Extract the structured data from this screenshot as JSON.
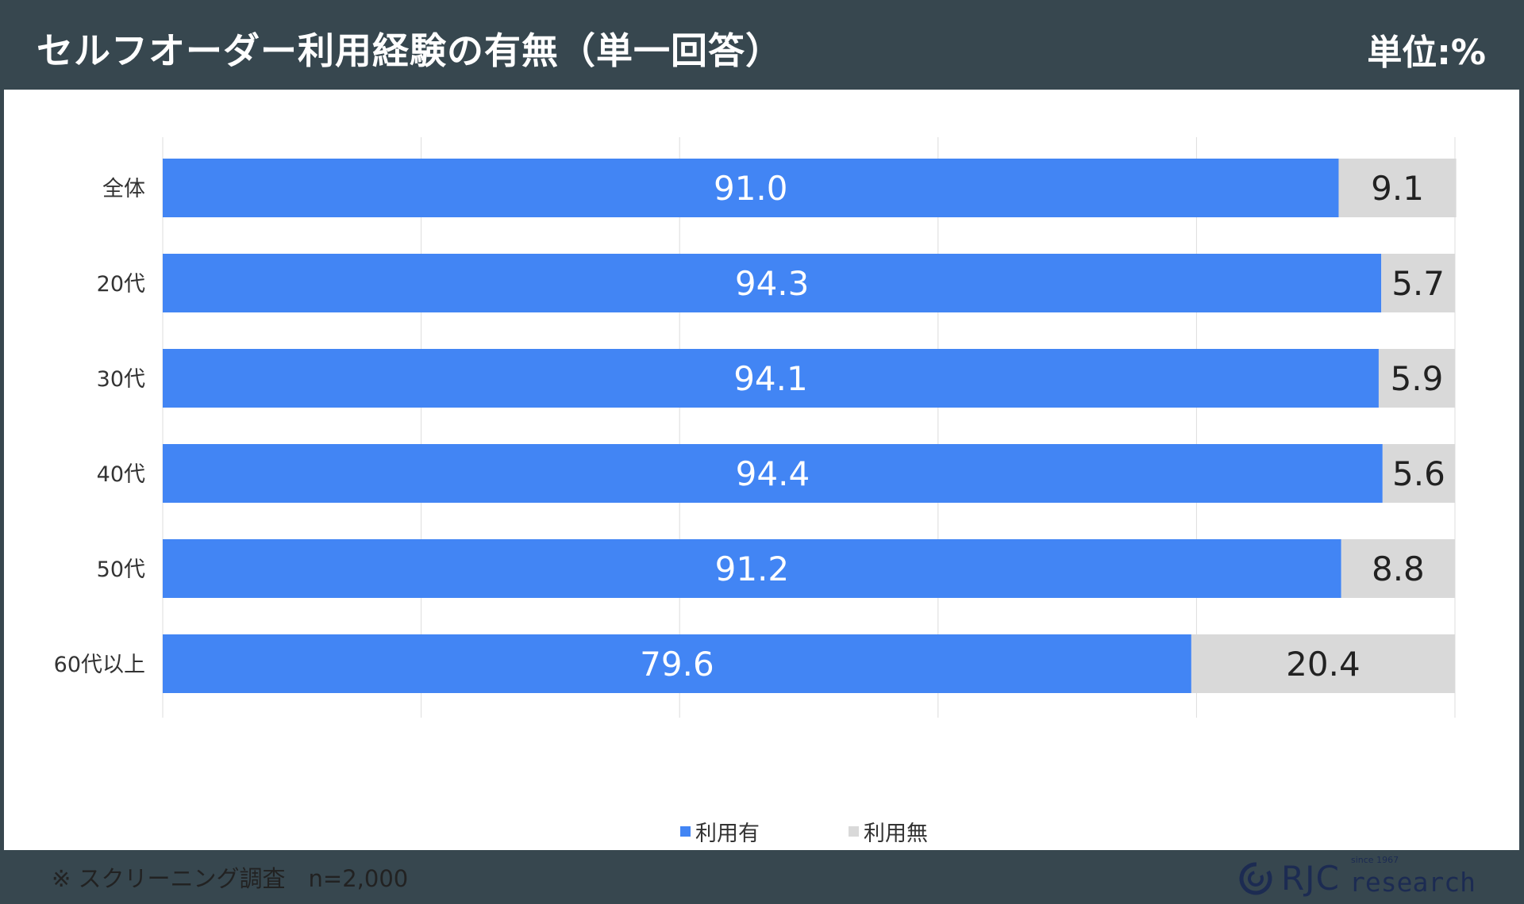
{
  "header": {
    "title": "セルフオーダー利用経験の有無（単一回答）",
    "unit": "単位:%"
  },
  "chart_data": {
    "type": "bar",
    "orientation": "horizontal",
    "stacked": true,
    "categories": [
      "全体",
      "20代",
      "30代",
      "40代",
      "50代",
      "60代以上"
    ],
    "series": [
      {
        "name": "利用有",
        "values": [
          91.0,
          94.3,
          94.1,
          94.4,
          91.2,
          79.6
        ],
        "color": "#4285f4",
        "label_color": "#ffffff"
      },
      {
        "name": "利用無",
        "values": [
          9.1,
          5.7,
          5.9,
          5.6,
          8.8,
          20.4
        ],
        "color": "#d9d9d9",
        "label_color": "#222222"
      }
    ],
    "xlim": [
      0,
      100
    ],
    "grid": true,
    "legend_position": "bottom-center"
  },
  "footnote": "※ スクリーニング調査　n=2,000",
  "logo": {
    "brand": "RJC",
    "word": "research",
    "since": "since 1967",
    "colors": {
      "navy": "#1c2b52",
      "ring": "#1c2b52"
    }
  }
}
